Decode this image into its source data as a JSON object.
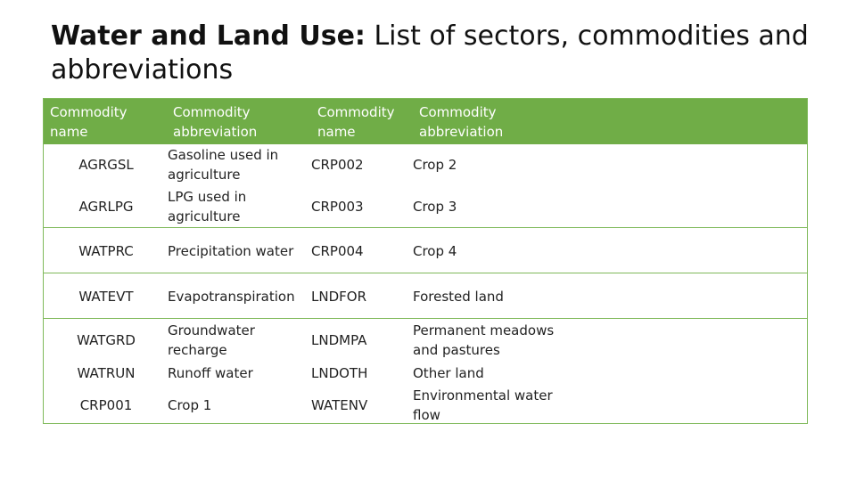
{
  "title": {
    "bold": "Water and Land Use:",
    "rest": " List of sectors, commodities and abbreviations"
  },
  "table": {
    "headers": [
      "Commodity name",
      "Commodity abbreviation",
      "Commodity name",
      "Commodity abbreviation"
    ],
    "rows": [
      [
        "AGRGSL",
        "Gasoline used in agriculture",
        "CRP002",
        "Crop 2"
      ],
      [
        "AGRLPG",
        "LPG used in agriculture",
        "CRP003",
        "Crop 3"
      ],
      [
        "WATPRC",
        "Precipitation water",
        "CRP004",
        "Crop 4"
      ],
      [
        "WATEVT",
        "Evapotranspiration",
        "LNDFOR",
        "Forested land"
      ],
      [
        "WATGRD",
        "Groundwater recharge",
        "LNDMPA",
        "Permanent meadows and pastures"
      ],
      [
        "WATRUN",
        "Runoff water",
        "LNDOTH",
        "Other land"
      ],
      [
        "CRP001",
        "Crop 1",
        "WATENV",
        "Environmental water flow"
      ]
    ]
  },
  "colors": {
    "header_bg": "#70ad47",
    "header_text": "#ffffff",
    "border": "#7fb95a"
  }
}
